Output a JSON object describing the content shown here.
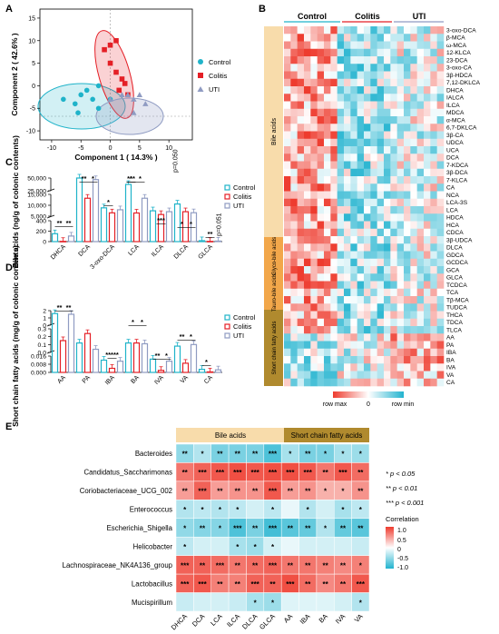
{
  "colors": {
    "control": "#1fb3c9",
    "colitis": "#e41f26",
    "uti": "#8f9bc2",
    "hm_high": "#ee3b2e",
    "hm_mid": "#ffffff",
    "hm_low": "#22b3cf",
    "bile_band": "#f8dcab",
    "scfa_band": "#b08a2e",
    "glyco_band": "#f2a74a"
  },
  "panels": {
    "A": "A",
    "B": "B",
    "C": "C",
    "D": "D",
    "E": "E"
  },
  "legend": {
    "control": "Control",
    "colitis": "Colitis",
    "uti": "UTI"
  },
  "panelA": {
    "xlabel": "Component 1 ( 14.3% )",
    "ylabel": "Component 2 ( 42.6% )",
    "xticks": [
      -10,
      -5,
      0,
      5,
      10
    ],
    "yticks": [
      -10,
      -5,
      0,
      5,
      10,
      15
    ],
    "chart_data": {
      "type": "scatter",
      "xlim": [
        -12,
        14
      ],
      "ylim": [
        -12,
        17
      ],
      "series": [
        {
          "name": "Control",
          "points": [
            [
              -8,
              -3
            ],
            [
              -5,
              -2
            ],
            [
              -6,
              -4
            ],
            [
              -4,
              -1
            ],
            [
              -2,
              0
            ],
            [
              -3,
              -3
            ],
            [
              -5.5,
              -6
            ],
            [
              -2,
              -5
            ],
            [
              0,
              -3
            ]
          ]
        },
        {
          "name": "Colitis",
          "points": [
            [
              -1,
              8
            ],
            [
              0,
              9
            ],
            [
              1,
              10
            ],
            [
              0,
              5
            ],
            [
              1,
              3
            ],
            [
              2,
              1.5
            ],
            [
              2.5,
              0.5
            ],
            [
              1.5,
              -1
            ],
            [
              3,
              -2
            ]
          ]
        },
        {
          "name": "UTI",
          "points": [
            [
              0,
              -3
            ],
            [
              2,
              -2
            ],
            [
              3,
              -2
            ],
            [
              4,
              -3
            ],
            [
              5,
              -2
            ],
            [
              6,
              -4
            ],
            [
              4,
              -6
            ]
          ]
        }
      ]
    }
  },
  "panelB": {
    "group_labels": [
      "Control",
      "Colitis",
      "UTI"
    ],
    "rows": [
      "3-oxo-DCA",
      "β-MCA",
      "ω-MCA",
      "12-KLCA",
      "23-DCA",
      "3-oxo-CA",
      "3β-HDCA",
      "7,12-DKLCA",
      "DHCA",
      "IALCA",
      "ILCA",
      "MDCA",
      "α-MCA",
      "6,7-DKLCA",
      "3β-CA",
      "UDCA",
      "UCA",
      "DCA",
      "7-KDCA",
      "3β-DCA",
      "7-KLCA",
      "CA",
      "NCA",
      "LCA-3S",
      "LCA",
      "HDCA",
      "HCA",
      "CDCA",
      "3β-UDCA",
      "DLCA",
      "GDCA",
      "GCDCA",
      "GCA",
      "GLCA",
      "TCDCA",
      "TCA",
      "Tβ-MCA",
      "TUDCA",
      "THCA",
      "TDCA",
      "TLCA",
      "AA",
      "PA",
      "IBA",
      "BA",
      "IVA",
      "VA",
      "CA"
    ],
    "side_labels": [
      "Bile acids",
      "Glyco-bile acids",
      "Tauro-bile acids",
      "Short chain fatty acids"
    ],
    "legend_labels": [
      "row max",
      "0",
      "row min"
    ]
  },
  "panelC": {
    "ylabel": "Bile acids (ng/g of colonic contents)",
    "categories": [
      "DHCA",
      "DCA",
      "3-oxo-DCA",
      "LCA",
      "ILCA",
      "DLCA",
      "GLCA"
    ],
    "yticks_top": [
      "50,000",
      "25,000"
    ],
    "yticks_mid": [
      "15,000",
      "10,000",
      "5,000"
    ],
    "yticks_low": [
      "400",
      "200",
      "0"
    ],
    "chart_data": {
      "type": "bar",
      "ylim_low": [
        0,
        450
      ],
      "ylim_mid": [
        0,
        17000
      ],
      "ylim_top": [
        20000,
        60000
      ],
      "series": [
        {
          "name": "Control",
          "values": [
            170,
            65000,
            6500,
            40000,
            4200,
            9500,
            20
          ]
        },
        {
          "name": "Colitis",
          "values": [
            5,
            14000,
            2600,
            2500,
            1300,
            3500,
            5
          ]
        },
        {
          "name": "UTI",
          "values": [
            120,
            55000,
            5000,
            14000,
            3500,
            2700,
            12
          ]
        }
      ],
      "annotations": [
        "**",
        "**",
        "**",
        "*",
        "*",
        "***",
        "*",
        "***",
        "*",
        "*",
        "*",
        "**",
        "p=0.050",
        "p=0.051"
      ]
    }
  },
  "panelD": {
    "ylabel": "Short chain fatty acids (mg/g of colonic contents)",
    "categories": [
      "AA",
      "PA",
      "IBA",
      "BA",
      "IVA",
      "VA",
      "CA"
    ],
    "yticks_top": [
      "2",
      "1",
      "0"
    ],
    "yticks_mid": [
      "0.3",
      "0.2",
      "0.1",
      "0.0"
    ],
    "yticks_low": [
      "0.016",
      "0.008",
      "0.000"
    ],
    "chart_data": {
      "type": "bar",
      "series": [
        {
          "name": "Control",
          "values": [
            1.6,
            0.12,
            0.012,
            0.12,
            0.013,
            0.08,
            0.003
          ]
        },
        {
          "name": "Colitis",
          "values": [
            0.15,
            0.24,
            0.004,
            0.12,
            0.002,
            0.009,
            0.0005
          ]
        },
        {
          "name": "UTI",
          "values": [
            1.5,
            0.04,
            0.011,
            0.11,
            0.011,
            0.1,
            0.0025
          ]
        }
      ],
      "annotations": [
        "**",
        "**",
        "*****",
        "*",
        "*",
        "**",
        "*",
        "**",
        "*",
        "*"
      ]
    }
  },
  "panelE": {
    "group_bile": "Bile acids",
    "group_scfa": "Short chain fatty acids",
    "cols": [
      "DHCA",
      "DCA",
      "LCA",
      "ILCA",
      "DLCA",
      "GLCA",
      "AA",
      "IBA",
      "BA",
      "IVA",
      "VA"
    ],
    "rows": [
      "Bacteroides",
      "Candidatus_Saccharimonas",
      "Coriobacteriaceae_UCG_002",
      "Enterococcus",
      "Escherichia_Shigella",
      "Helicobacter",
      "Lachnospiraceae_NK4A136_group",
      "Lactobacillus",
      "Mucispirillum"
    ],
    "values": [
      [
        -0.5,
        -0.35,
        -0.6,
        -0.6,
        -0.6,
        -0.8,
        -0.4,
        -0.6,
        -0.6,
        -0.4,
        -0.45
      ],
      [
        0.7,
        0.8,
        0.85,
        0.9,
        0.85,
        0.9,
        0.9,
        0.85,
        0.7,
        0.85,
        0.75
      ],
      [
        0.5,
        0.8,
        0.5,
        0.55,
        0.55,
        0.85,
        0.5,
        0.55,
        0.4,
        0.4,
        0.55
      ],
      [
        -0.35,
        -0.3,
        -0.35,
        -0.3,
        -0.2,
        -0.3,
        -0.1,
        -0.35,
        -0.2,
        -0.4,
        -0.3
      ],
      [
        -0.5,
        -0.55,
        -0.55,
        -0.8,
        -0.6,
        -0.85,
        -0.75,
        -0.7,
        -0.35,
        -0.7,
        -0.75
      ],
      [
        -0.3,
        -0.2,
        -0.2,
        -0.4,
        -0.45,
        -0.2,
        -0.1,
        -0.2,
        -0.2,
        -0.2,
        -0.25
      ],
      [
        0.8,
        0.8,
        0.75,
        0.7,
        0.75,
        0.8,
        0.7,
        0.7,
        0.65,
        0.6,
        0.65
      ],
      [
        0.8,
        0.85,
        0.65,
        0.65,
        0.8,
        0.8,
        0.9,
        0.75,
        0.6,
        0.7,
        0.85
      ],
      [
        -0.25,
        -0.2,
        -0.2,
        -0.25,
        -0.4,
        -0.45,
        -0.15,
        -0.15,
        -0.15,
        -0.2,
        -0.35
      ]
    ],
    "stars": [
      [
        "**",
        "*",
        "**",
        "**",
        "**",
        "***",
        "*",
        "**",
        "*",
        "*",
        "*"
      ],
      [
        "**",
        "***",
        "***",
        "***",
        "***",
        "***",
        "***",
        "***",
        "**",
        "***",
        "**"
      ],
      [
        "**",
        "***",
        "**",
        "**",
        "**",
        "***",
        "**",
        "**",
        "*",
        "*",
        "**"
      ],
      [
        "*",
        "*",
        "*",
        "*",
        "",
        "*",
        "",
        "*",
        "",
        "*",
        "*"
      ],
      [
        "*",
        "**",
        "*",
        "***",
        "**",
        "***",
        "**",
        "**",
        "*",
        "**",
        "**"
      ],
      [
        "*",
        "",
        "",
        "*",
        "*",
        "*",
        "",
        "",
        "",
        "",
        ""
      ],
      [
        "***",
        "**",
        "***",
        "**",
        "**",
        "***",
        "**",
        "**",
        "**",
        "**",
        "*"
      ],
      [
        "***",
        "***",
        "**",
        "**",
        "***",
        "**",
        "***",
        "**",
        "**",
        "**",
        "***"
      ],
      [
        "",
        "",
        "",
        "",
        "*",
        "*",
        "",
        "",
        "",
        "",
        "*"
      ]
    ],
    "sig_legend": [
      "* p < 0.05",
      "** p < 0.01",
      "*** p < 0.001"
    ],
    "corr_title": "Correlation",
    "corr_ticks": [
      "1.0",
      "0.5",
      "0",
      "-0.5",
      "-1.0"
    ]
  }
}
